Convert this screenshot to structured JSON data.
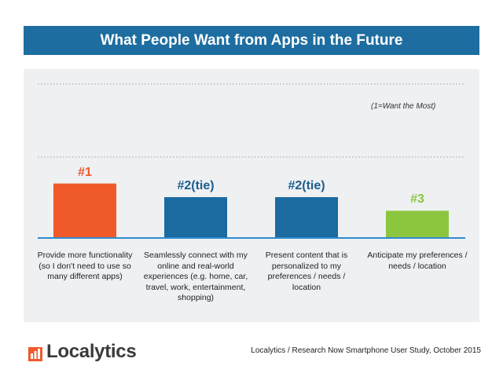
{
  "title": "What People Want from Apps in the Future",
  "note": "(1=Want the Most)",
  "logo": {
    "text": "Localytics",
    "icon": "bar-chart-icon"
  },
  "source": "Localytics / Research Now Smartphone User Study, October 2015",
  "chart_data": {
    "type": "bar",
    "title": "What People Want from Apps in the Future",
    "categories": [
      "Provide more functionality (so I don't need to use so many different apps)",
      "Seamlessly connect with my online and real-world experiences (e.g. home, car, travel, work, entertainment, shopping)",
      "Present content that is personalized to my preferences / needs / location",
      "Anticipate my preferences / needs / location"
    ],
    "values": [
      4,
      3,
      3,
      2
    ],
    "rank_labels": [
      "#1",
      "#2(tie)",
      "#2(tie)",
      "#3"
    ],
    "colors": [
      "#f0592a",
      "#1b6aa0",
      "#1b6aa0",
      "#8cc63f"
    ],
    "baseline_color": "#2d8ccf",
    "gridline_color": "#9aa3aa",
    "ylim": [
      0,
      6.2
    ],
    "grid": true,
    "legend": "none"
  }
}
